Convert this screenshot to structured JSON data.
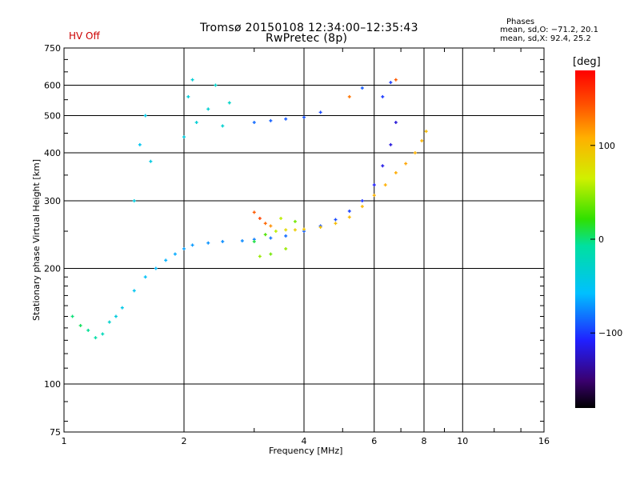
{
  "header": {
    "hv_status": "HV Off",
    "hv_color": "#cc0000",
    "title_line1": "Tromsø 20150108 12:34:00–12:35:43",
    "title_line2": "RwPretec (8p)"
  },
  "phase_box": {
    "title": "Phases",
    "o_line": "mean, sd,O: −71.2, 20.1",
    "x_line": "mean, sd,X:  92.4, 25.2"
  },
  "colorbar": {
    "unit": "[deg]",
    "ticks": [
      "100",
      "0",
      "−100"
    ],
    "tick_values": [
      100,
      0,
      -100
    ],
    "range": [
      -180,
      180
    ]
  },
  "chart_data": {
    "type": "scatter",
    "xlabel": "Frequency [MHz]",
    "ylabel": "Stationary phase Virtual Height [km]",
    "x_scale": "log",
    "y_scale": "log",
    "xlim": [
      1,
      16
    ],
    "ylim": [
      75,
      750
    ],
    "x_ticks": [
      1,
      2,
      4,
      6,
      8,
      10,
      16
    ],
    "x_tick_labels": [
      "1",
      "2",
      "4",
      "6",
      "8",
      "10",
      "16"
    ],
    "y_ticks": [
      75,
      100,
      200,
      300,
      400,
      500,
      600,
      750
    ],
    "y_tick_labels": [
      "75",
      "100",
      "200",
      "300",
      "400",
      "500",
      "600",
      "750"
    ],
    "grid": true,
    "color_quantity": "phase (deg)",
    "series": [
      {
        "points": [
          [
            1.05,
            150,
            0
          ],
          [
            1.1,
            142,
            5
          ],
          [
            1.15,
            138,
            -5
          ],
          [
            1.2,
            132,
            -10
          ],
          [
            1.25,
            135,
            -20
          ],
          [
            1.3,
            145,
            -30
          ],
          [
            1.35,
            150,
            -40
          ],
          [
            1.4,
            158,
            -45
          ],
          [
            1.5,
            175,
            -50
          ],
          [
            1.6,
            190,
            -55
          ],
          [
            1.7,
            200,
            -60
          ],
          [
            1.8,
            210,
            -62
          ],
          [
            1.9,
            218,
            -65
          ],
          [
            2.0,
            225,
            -68
          ],
          [
            2.1,
            230,
            -70
          ],
          [
            2.3,
            233,
            -72
          ],
          [
            2.5,
            235,
            -74
          ],
          [
            2.8,
            236,
            -75
          ],
          [
            3.0,
            238,
            -78
          ],
          [
            3.3,
            240,
            -82
          ],
          [
            3.6,
            243,
            -85
          ],
          [
            4.0,
            250,
            -88
          ],
          [
            4.4,
            258,
            -92
          ],
          [
            4.8,
            268,
            -95
          ],
          [
            5.2,
            282,
            -98
          ],
          [
            5.6,
            300,
            -102
          ],
          [
            6.0,
            330,
            -108
          ],
          [
            6.3,
            370,
            -115
          ],
          [
            6.6,
            420,
            -118
          ],
          [
            6.8,
            480,
            -120
          ]
        ]
      },
      {
        "points": [
          [
            3.0,
            235,
            10
          ],
          [
            3.2,
            245,
            30
          ],
          [
            3.4,
            250,
            60
          ],
          [
            3.6,
            252,
            80
          ],
          [
            3.8,
            252,
            90
          ],
          [
            4.0,
            253,
            95
          ],
          [
            4.4,
            256,
            98
          ],
          [
            4.8,
            262,
            100
          ],
          [
            5.2,
            272,
            102
          ],
          [
            5.6,
            290,
            104
          ],
          [
            6.0,
            310,
            106
          ],
          [
            6.4,
            330,
            108
          ],
          [
            6.8,
            355,
            110
          ],
          [
            7.2,
            375,
            112
          ],
          [
            7.6,
            400,
            108
          ],
          [
            7.9,
            430,
            104
          ],
          [
            8.1,
            455,
            100
          ]
        ]
      },
      {
        "points": [
          [
            1.5,
            300,
            -40
          ],
          [
            1.55,
            420,
            -50
          ],
          [
            1.6,
            500,
            -45
          ],
          [
            1.65,
            380,
            -42
          ],
          [
            2.0,
            440,
            -40
          ],
          [
            2.05,
            560,
            -38
          ],
          [
            2.1,
            620,
            -36
          ],
          [
            2.15,
            480,
            -35
          ],
          [
            2.3,
            520,
            -34
          ],
          [
            2.4,
            600,
            -30
          ],
          [
            2.5,
            470,
            -32
          ],
          [
            2.6,
            540,
            -28
          ]
        ]
      },
      {
        "points": [
          [
            3.0,
            480,
            -85
          ],
          [
            3.3,
            485,
            -88
          ],
          [
            3.6,
            490,
            -90
          ],
          [
            4.0,
            495,
            -92
          ],
          [
            4.4,
            510,
            -95
          ],
          [
            5.2,
            560,
            130
          ],
          [
            5.6,
            590,
            -90
          ],
          [
            6.3,
            560,
            -100
          ],
          [
            6.6,
            610,
            -100
          ],
          [
            6.8,
            620,
            140
          ]
        ]
      },
      {
        "points": [
          [
            3.0,
            280,
            140
          ],
          [
            3.1,
            270,
            150
          ],
          [
            3.2,
            262,
            135
          ],
          [
            3.3,
            258,
            120
          ],
          [
            3.5,
            270,
            60
          ],
          [
            3.8,
            265,
            40
          ],
          [
            3.1,
            215,
            50
          ],
          [
            3.3,
            218,
            40
          ],
          [
            3.6,
            225,
            50
          ]
        ]
      }
    ]
  }
}
